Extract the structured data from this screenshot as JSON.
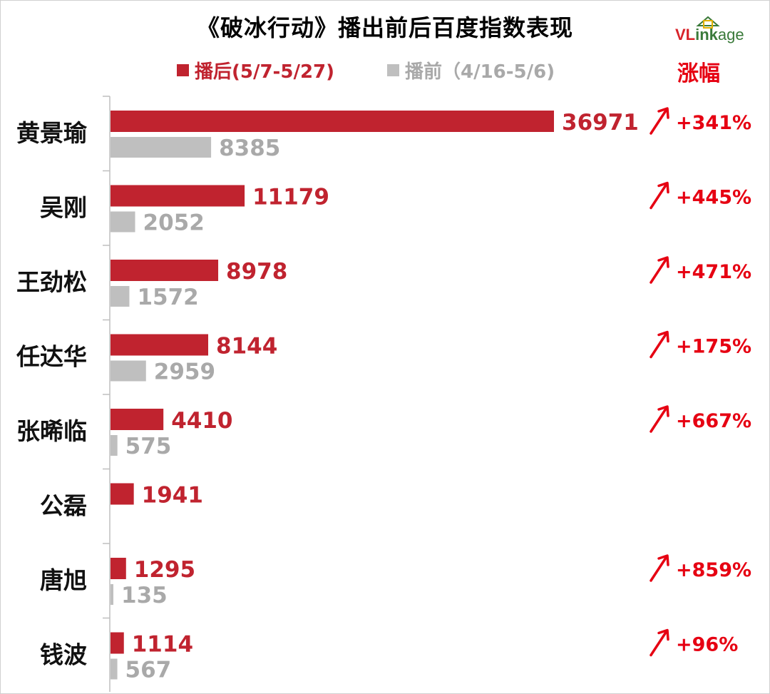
{
  "header": {
    "title": "《破冰行动》播出前后百度指数表现",
    "legend_after": "播后(5/7-5/27)",
    "legend_before": "播前（4/16-5/6)",
    "change_header": "涨幅"
  },
  "brand": {
    "v": "VL",
    "ink": "ink",
    "age": "age"
  },
  "colors": {
    "after": "#c0232f",
    "before": "#bfbfbf",
    "accent": "#e60012"
  },
  "chart_data": {
    "type": "bar",
    "orientation": "horizontal",
    "title": "《破冰行动》播出前后百度指数表现",
    "categories": [
      "黄景瑜",
      "吴刚",
      "王劲松",
      "任达华",
      "张晞临",
      "公磊",
      "唐旭",
      "钱波"
    ],
    "series": [
      {
        "name": "播后(5/7-5/27)",
        "values": [
          36971,
          11179,
          8978,
          8144,
          4410,
          1941,
          1295,
          1114
        ]
      },
      {
        "name": "播前（4/16-5/6)",
        "values": [
          8385,
          2052,
          1572,
          2959,
          575,
          null,
          135,
          567
        ]
      }
    ],
    "change_labels": [
      "+341%",
      "+445%",
      "+471%",
      "+175%",
      "+667%",
      "",
      "+859%",
      "+96%"
    ],
    "xlim": [
      0,
      36971
    ],
    "grid": false,
    "legend_position": "top"
  }
}
